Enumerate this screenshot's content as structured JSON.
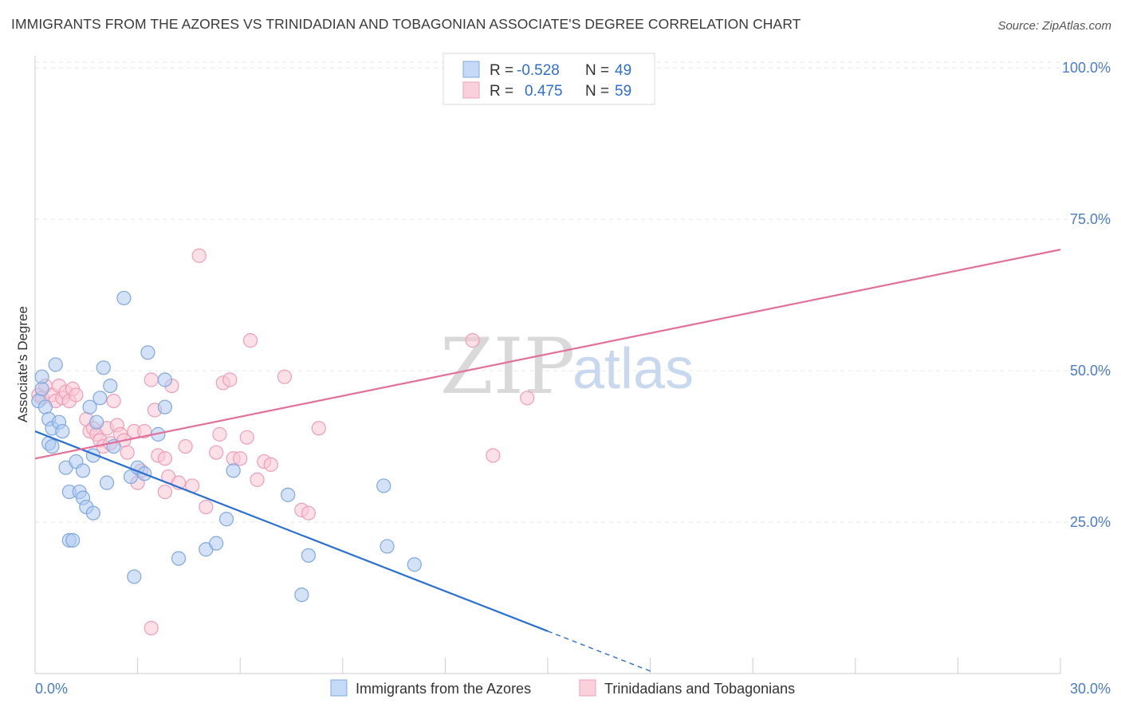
{
  "title": "IMMIGRANTS FROM THE AZORES VS TRINIDADIAN AND TOBAGONIAN ASSOCIATE'S DEGREE CORRELATION CHART",
  "source": "Source: ZipAtlas.com",
  "watermark": {
    "zip": "ZIP",
    "atlas": "atlas"
  },
  "legend": {
    "rows": [
      {
        "r_label": "R =",
        "r_value": "-0.528",
        "n_label": "N =",
        "n_value": "49"
      },
      {
        "r_label": "R =",
        "r_value": "0.475",
        "n_label": "N =",
        "n_value": "59"
      }
    ]
  },
  "bottom_legend": [
    {
      "label": "Immigrants from the Azores"
    },
    {
      "label": "Trinidadians and Tobagonians"
    }
  ],
  "chart_data": {
    "type": "scatter",
    "title": "IMMIGRANTS FROM THE AZORES VS TRINIDADIAN AND TOBAGONIAN ASSOCIATE'S DEGREE CORRELATION CHART",
    "xlabel": "",
    "ylabel": "Associate's Degree",
    "xlim": [
      0,
      30
    ],
    "ylim": [
      0,
      102
    ],
    "x_tick_labels": [
      "0.0%",
      "30.0%"
    ],
    "y_ticks": [
      25,
      50,
      75,
      100
    ],
    "y_tick_labels": [
      "25.0%",
      "50.0%",
      "75.0%",
      "100.0%"
    ],
    "grid": true,
    "legend_position": "top-center",
    "colors": {
      "blue": "#7fb0ea",
      "blue_line": "#2a70d0",
      "pink": "#f2a0ba",
      "pink_line": "#e2709a"
    },
    "series": [
      {
        "name": "Immigrants from the Azores",
        "color": "blue",
        "r": -0.528,
        "n": 49,
        "trend": {
          "x0": 0.0,
          "y0": 40.0,
          "x1": 15.0,
          "y1": 7.0,
          "dash_to_x": 18.0,
          "dash_to_y": 0.4
        },
        "points": [
          [
            0.1,
            45.0
          ],
          [
            0.2,
            47.0
          ],
          [
            0.2,
            49.0
          ],
          [
            0.3,
            44.0
          ],
          [
            0.4,
            42.0
          ],
          [
            0.4,
            38.0
          ],
          [
            0.5,
            37.5
          ],
          [
            0.5,
            40.5
          ],
          [
            0.6,
            51.0
          ],
          [
            0.7,
            41.5
          ],
          [
            0.8,
            40.0
          ],
          [
            0.9,
            34.0
          ],
          [
            1.0,
            30.0
          ],
          [
            1.0,
            22.0
          ],
          [
            1.1,
            22.0
          ],
          [
            1.2,
            35.0
          ],
          [
            1.3,
            30.0
          ],
          [
            1.4,
            29.0
          ],
          [
            1.4,
            33.5
          ],
          [
            1.5,
            27.5
          ],
          [
            1.6,
            44.0
          ],
          [
            1.7,
            36.0
          ],
          [
            1.7,
            26.5
          ],
          [
            1.8,
            41.5
          ],
          [
            1.9,
            45.5
          ],
          [
            2.0,
            50.5
          ],
          [
            2.1,
            31.5
          ],
          [
            2.2,
            47.5
          ],
          [
            2.3,
            37.5
          ],
          [
            2.6,
            62.0
          ],
          [
            2.8,
            32.5
          ],
          [
            2.9,
            16.0
          ],
          [
            3.0,
            34.0
          ],
          [
            3.2,
            33.0
          ],
          [
            3.3,
            53.0
          ],
          [
            3.6,
            39.5
          ],
          [
            3.8,
            48.5
          ],
          [
            3.8,
            44.0
          ],
          [
            4.2,
            19.0
          ],
          [
            5.0,
            20.5
          ],
          [
            5.3,
            21.5
          ],
          [
            5.6,
            25.5
          ],
          [
            5.8,
            33.5
          ],
          [
            7.4,
            29.5
          ],
          [
            7.8,
            13.0
          ],
          [
            8.0,
            19.5
          ],
          [
            10.2,
            31.0
          ],
          [
            10.3,
            21.0
          ],
          [
            11.1,
            18.0
          ]
        ]
      },
      {
        "name": "Trinidadians and Tobagonians",
        "color": "pink",
        "r": 0.475,
        "n": 59,
        "trend": {
          "x0": 0.0,
          "y0": 35.5,
          "x1": 30.0,
          "y1": 70.0
        },
        "points": [
          [
            0.1,
            46.0
          ],
          [
            0.2,
            45.5
          ],
          [
            0.3,
            47.5
          ],
          [
            0.5,
            46.0
          ],
          [
            0.6,
            45.0
          ],
          [
            0.7,
            47.5
          ],
          [
            0.8,
            45.5
          ],
          [
            0.9,
            46.5
          ],
          [
            1.0,
            45.0
          ],
          [
            1.1,
            47.0
          ],
          [
            1.2,
            46.0
          ],
          [
            1.5,
            42.0
          ],
          [
            1.6,
            40.0
          ],
          [
            1.7,
            40.5
          ],
          [
            1.8,
            39.5
          ],
          [
            1.9,
            38.5
          ],
          [
            2.0,
            37.5
          ],
          [
            2.1,
            40.5
          ],
          [
            2.2,
            38.0
          ],
          [
            2.3,
            45.0
          ],
          [
            2.4,
            41.0
          ],
          [
            2.5,
            39.5
          ],
          [
            2.6,
            38.5
          ],
          [
            2.7,
            36.5
          ],
          [
            2.9,
            40.0
          ],
          [
            3.0,
            31.5
          ],
          [
            3.1,
            33.5
          ],
          [
            3.2,
            40.0
          ],
          [
            3.4,
            48.5
          ],
          [
            3.5,
            43.5
          ],
          [
            3.6,
            36.0
          ],
          [
            3.8,
            35.5
          ],
          [
            3.9,
            32.5
          ],
          [
            4.0,
            47.5
          ],
          [
            4.2,
            31.5
          ],
          [
            4.4,
            37.5
          ],
          [
            4.6,
            31.0
          ],
          [
            5.0,
            27.5
          ],
          [
            5.3,
            36.5
          ],
          [
            5.4,
            39.5
          ],
          [
            5.5,
            48.0
          ],
          [
            5.7,
            48.5
          ],
          [
            5.8,
            35.5
          ],
          [
            6.0,
            35.5
          ],
          [
            6.2,
            39.0
          ],
          [
            6.3,
            55.0
          ],
          [
            6.5,
            32.0
          ],
          [
            6.7,
            35.0
          ],
          [
            6.9,
            34.5
          ],
          [
            7.3,
            49.0
          ],
          [
            7.8,
            27.0
          ],
          [
            8.0,
            26.5
          ],
          [
            8.3,
            40.5
          ],
          [
            3.4,
            7.5
          ],
          [
            3.8,
            30.0
          ],
          [
            4.8,
            69.0
          ],
          [
            12.8,
            55.0
          ],
          [
            13.4,
            36.0
          ],
          [
            14.4,
            45.5
          ]
        ]
      }
    ]
  }
}
